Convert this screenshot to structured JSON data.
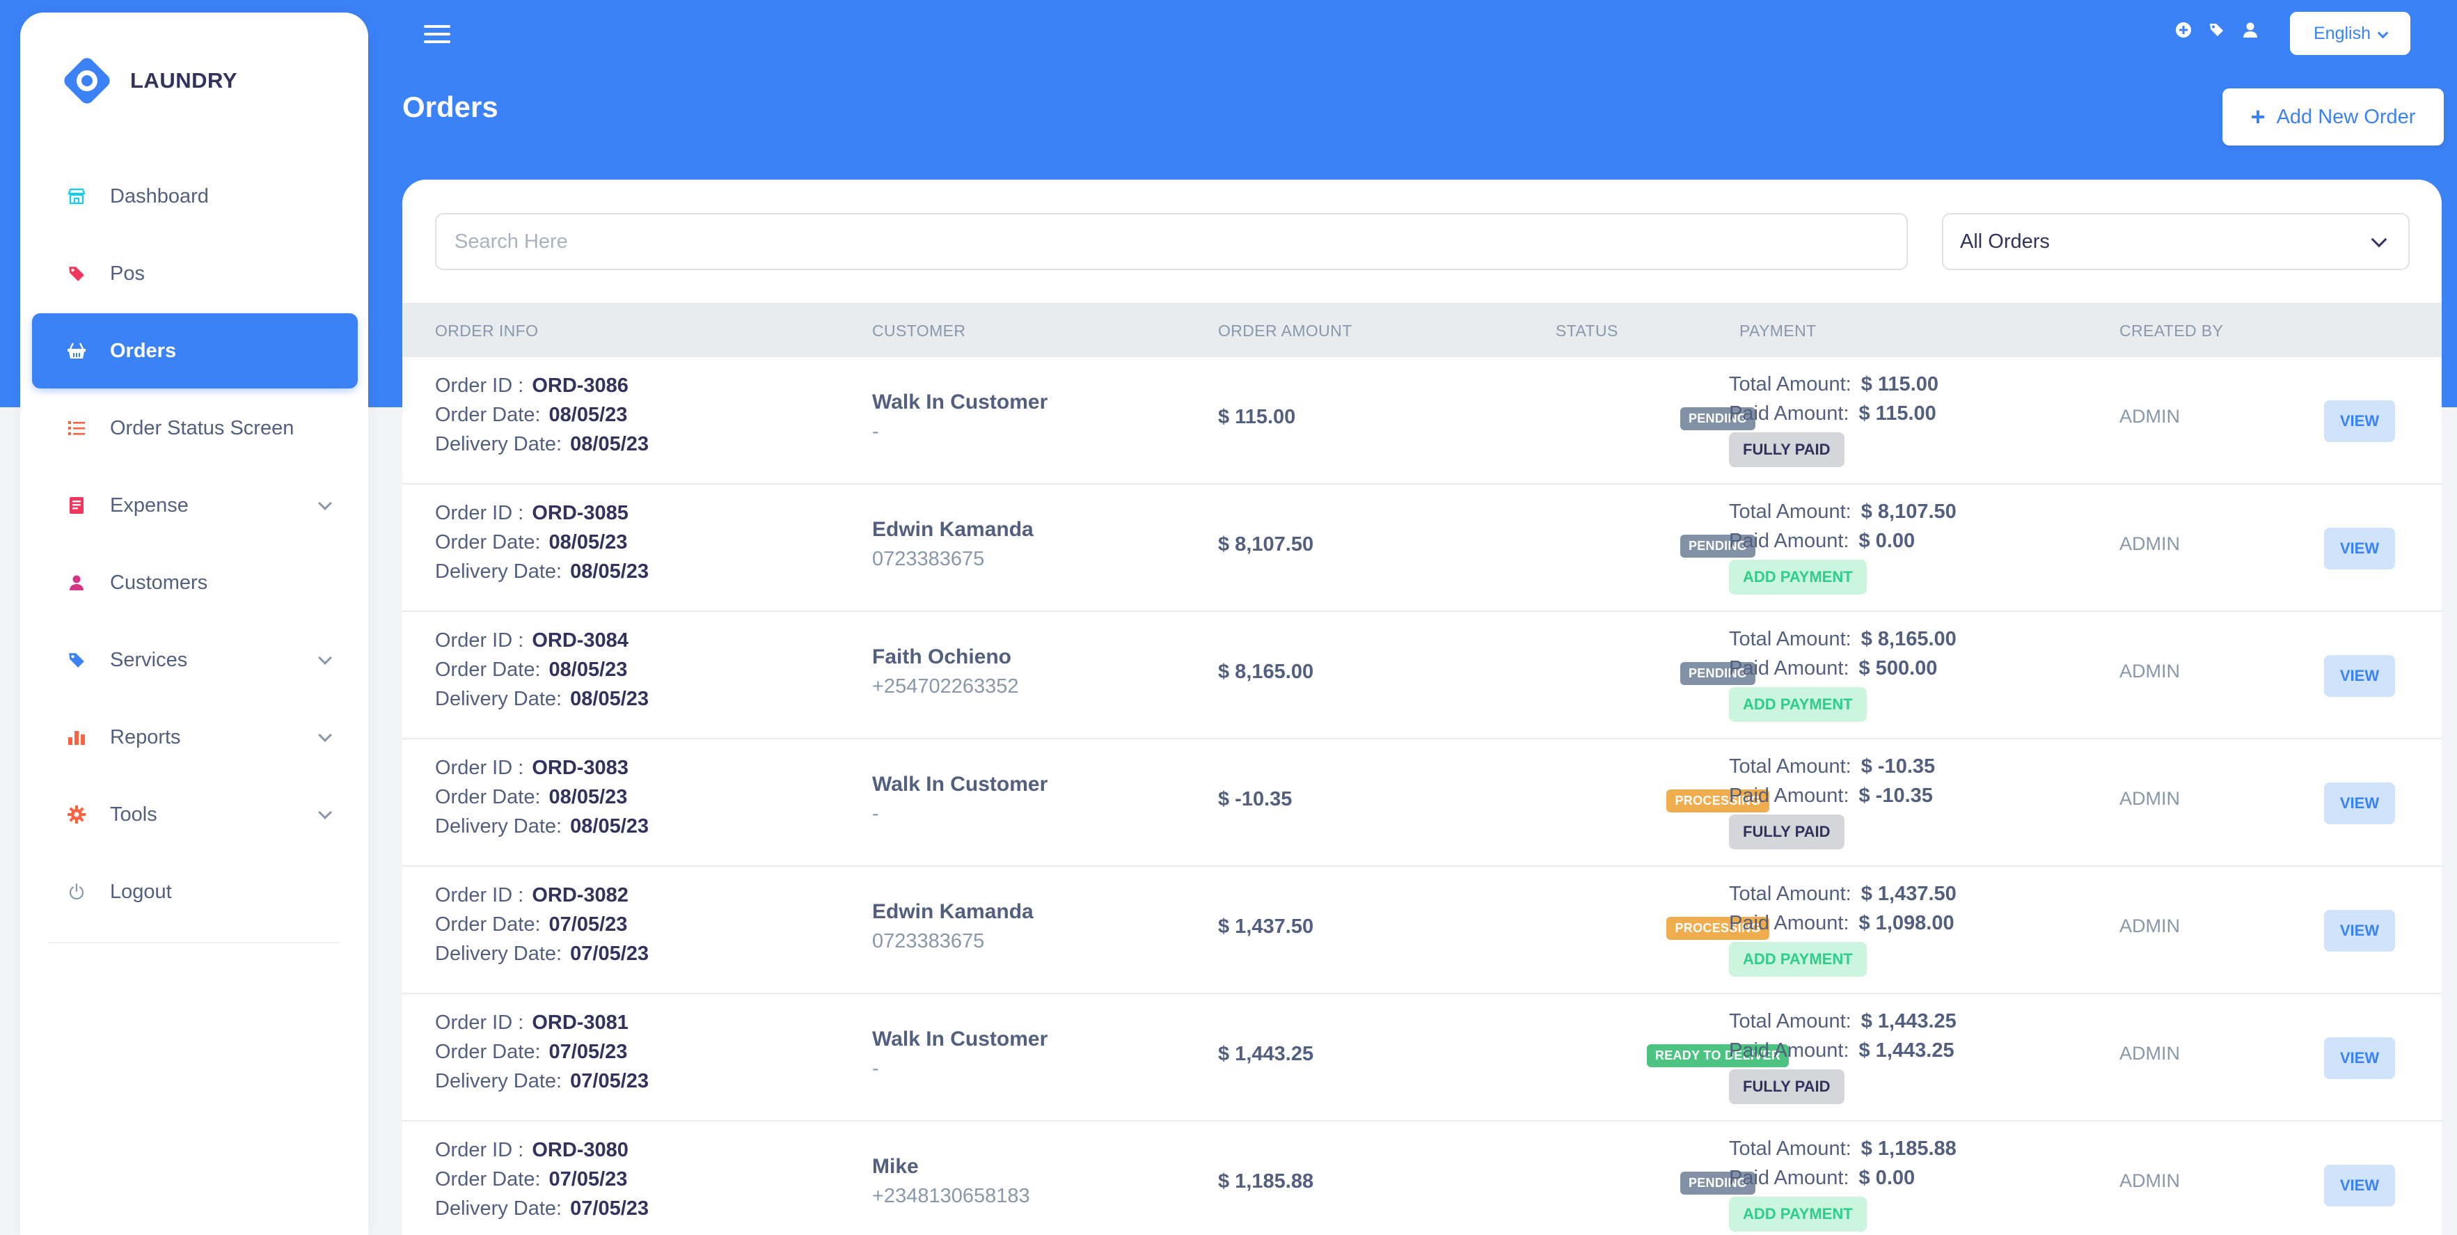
{
  "app": {
    "brand": "LAUNDRY"
  },
  "sidebar": {
    "items": [
      {
        "label": "Dashboard",
        "icon": "store-icon",
        "color": "#11cdef",
        "active": false,
        "expandable": false
      },
      {
        "label": "Pos",
        "icon": "tag-icon",
        "color": "#f5365c",
        "active": false,
        "expandable": false
      },
      {
        "label": "Orders",
        "icon": "basket-icon",
        "color": "#ffffff",
        "active": true,
        "expandable": false
      },
      {
        "label": "Order Status Screen",
        "icon": "list-icon",
        "color": "#fb6340",
        "active": false,
        "expandable": false
      },
      {
        "label": "Expense",
        "icon": "receipt-icon",
        "color": "#f5365c",
        "active": false,
        "expandable": true
      },
      {
        "label": "Customers",
        "icon": "user-icon",
        "color": "#d63384",
        "active": false,
        "expandable": false
      },
      {
        "label": "Services",
        "icon": "tag-icon",
        "color": "#3b82f6",
        "active": false,
        "expandable": true
      },
      {
        "label": "Reports",
        "icon": "bar-chart-icon",
        "color": "#fb6340",
        "active": false,
        "expandable": true
      },
      {
        "label": "Tools",
        "icon": "gear-icon",
        "color": "#fb6340",
        "active": false,
        "expandable": true
      },
      {
        "label": "Logout",
        "icon": "power-icon",
        "color": "#8898aa",
        "active": false,
        "expandable": false
      }
    ]
  },
  "header": {
    "language": "English",
    "page_title": "Orders",
    "add_button": "Add New Order"
  },
  "filters": {
    "search_placeholder": "Search Here",
    "search_value": "",
    "order_filter": "All Orders"
  },
  "table": {
    "columns": {
      "order_info": "ORDER INFO",
      "customer": "CUSTOMER",
      "order_amount": "ORDER AMOUNT",
      "status": "STATUS",
      "payment": "PAYMENT",
      "created_by": "CREATED BY"
    },
    "labels": {
      "order_id": "Order ID :",
      "order_date": "Order Date:",
      "delivery_date": "Delivery Date:",
      "total_amount": "Total Amount:",
      "paid_amount": "Paid Amount:",
      "view": "VIEW"
    },
    "rows": [
      {
        "order_id": "ORD-3086",
        "order_date": "08/05/23",
        "delivery_date": "08/05/23",
        "customer": "Walk In Customer",
        "phone": "-",
        "amount": "$ 115.00",
        "status": "PENDING",
        "status_type": "pending",
        "total": "$ 115.00",
        "paid": "$ 115.00",
        "payment_action": "FULLY PAID",
        "payment_type": "fully",
        "created_by": "ADMIN"
      },
      {
        "order_id": "ORD-3085",
        "order_date": "08/05/23",
        "delivery_date": "08/05/23",
        "customer": "Edwin Kamanda",
        "phone": "0723383675",
        "amount": "$ 8,107.50",
        "status": "PENDING",
        "status_type": "pending",
        "total": "$ 8,107.50",
        "paid": "$ 0.00",
        "payment_action": "ADD PAYMENT",
        "payment_type": "add",
        "created_by": "ADMIN"
      },
      {
        "order_id": "ORD-3084",
        "order_date": "08/05/23",
        "delivery_date": "08/05/23",
        "customer": "Faith Ochieno",
        "phone": "+254702263352",
        "amount": "$ 8,165.00",
        "status": "PENDING",
        "status_type": "pending",
        "total": "$ 8,165.00",
        "paid": "$ 500.00",
        "payment_action": "ADD PAYMENT",
        "payment_type": "add",
        "created_by": "ADMIN"
      },
      {
        "order_id": "ORD-3083",
        "order_date": "08/05/23",
        "delivery_date": "08/05/23",
        "customer": "Walk In Customer",
        "phone": "-",
        "amount": "$ -10.35",
        "status": "PROCESSING",
        "status_type": "processing",
        "total": "$ -10.35",
        "paid": "$ -10.35",
        "payment_action": "FULLY PAID",
        "payment_type": "fully",
        "created_by": "ADMIN"
      },
      {
        "order_id": "ORD-3082",
        "order_date": "07/05/23",
        "delivery_date": "07/05/23",
        "customer": "Edwin Kamanda",
        "phone": "0723383675",
        "amount": "$ 1,437.50",
        "status": "PROCESSING",
        "status_type": "processing",
        "total": "$ 1,437.50",
        "paid": "$ 1,098.00",
        "payment_action": "ADD PAYMENT",
        "payment_type": "add",
        "created_by": "ADMIN"
      },
      {
        "order_id": "ORD-3081",
        "order_date": "07/05/23",
        "delivery_date": "07/05/23",
        "customer": "Walk In Customer",
        "phone": "-",
        "amount": "$ 1,443.25",
        "status": "READY TO DELIVER",
        "status_type": "ready",
        "total": "$ 1,443.25",
        "paid": "$ 1,443.25",
        "payment_action": "FULLY PAID",
        "payment_type": "fully",
        "created_by": "ADMIN"
      },
      {
        "order_id": "ORD-3080",
        "order_date": "07/05/23",
        "delivery_date": "07/05/23",
        "customer": "Mike",
        "phone": "+2348130658183",
        "amount": "$ 1,185.88",
        "status": "PENDING",
        "status_type": "pending",
        "total": "$ 1,185.88",
        "paid": "$ 0.00",
        "payment_action": "ADD PAYMENT",
        "payment_type": "add",
        "created_by": "ADMIN"
      }
    ]
  }
}
